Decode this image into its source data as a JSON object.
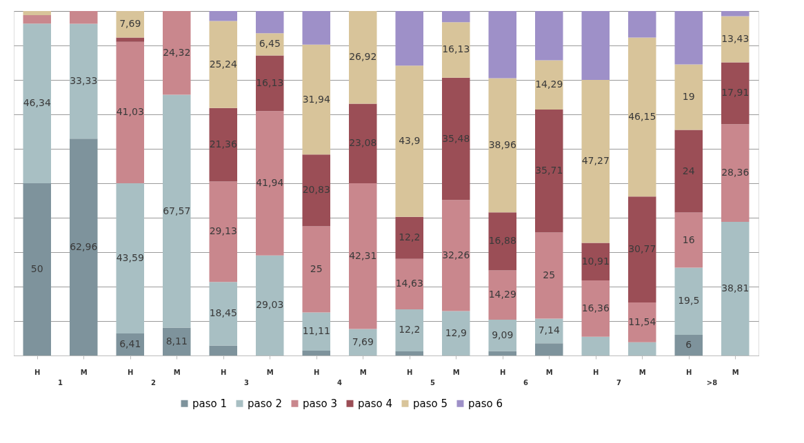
{
  "chart_data": {
    "type": "bar",
    "stacked": true,
    "categories": [
      "H",
      "M",
      "H",
      "M",
      "H",
      "M",
      "H",
      "M",
      "H",
      "M",
      "H",
      "M",
      "H",
      "M",
      "H",
      "M"
    ],
    "annotations": [
      "1",
      "2",
      "3",
      "4",
      "5",
      "6",
      "7",
      ">8"
    ],
    "series": [
      {
        "name": "paso 1",
        "color": "#7e939c",
        "values": [
          50,
          62.96,
          6.41,
          8.11,
          2.91,
          0,
          1.39,
          0,
          1.22,
          0,
          1.3,
          3.57,
          0,
          0,
          6,
          0
        ],
        "value_labels": [
          "50",
          "62,96",
          "6,41",
          "8,11",
          null,
          null,
          null,
          null,
          null,
          null,
          null,
          null,
          null,
          null,
          "6",
          null
        ]
      },
      {
        "name": "paso 2",
        "color": "#a8bfc3",
        "values": [
          46.34,
          33.33,
          43.59,
          67.57,
          18.45,
          29.03,
          11.11,
          7.69,
          12.2,
          12.9,
          9.09,
          7.14,
          5.45,
          3.85,
          19.5,
          38.81
        ],
        "value_labels": [
          "46,34",
          "33,33",
          "43,59",
          "67,57",
          "18,45",
          "29,03",
          "11,11",
          "7,69",
          "12,2",
          "12,9",
          "9,09",
          "7,14",
          null,
          null,
          "19,5",
          "38,81"
        ]
      },
      {
        "name": "paso 3",
        "color": "#c9878d",
        "values": [
          2.44,
          3.7,
          41.03,
          24.32,
          29.13,
          41.94,
          25,
          42.31,
          14.63,
          32.26,
          14.29,
          25,
          16.36,
          11.54,
          16,
          28.36
        ],
        "value_labels": [
          null,
          null,
          "41,03",
          "24,32",
          "29,13",
          "41,94",
          "25",
          "42,31",
          "14,63",
          "32,26",
          "14,29",
          "25",
          "16,36",
          "11,54",
          "16",
          "28,36"
        ]
      },
      {
        "name": "paso 4",
        "color": "#9b4e56",
        "values": [
          0,
          0,
          1.28,
          0,
          21.36,
          16.13,
          20.83,
          23.08,
          12.2,
          35.48,
          16.88,
          35.71,
          10.91,
          30.77,
          24,
          17.91
        ],
        "value_labels": [
          null,
          null,
          null,
          null,
          "21,36",
          "16,13",
          "20,83",
          "23,08",
          "12,2",
          "35,48",
          "16,88",
          "35,71",
          "10,91",
          "30,77",
          "24",
          "17,91"
        ]
      },
      {
        "name": "paso 5",
        "color": "#d8c49a",
        "values": [
          1.22,
          0,
          7.69,
          0,
          25.24,
          6.45,
          31.94,
          26.92,
          43.9,
          16.13,
          38.96,
          14.29,
          47.27,
          46.15,
          19,
          13.43
        ],
        "value_labels": [
          null,
          null,
          "7,69",
          null,
          "25,24",
          "6,45",
          "31,94",
          "26,92",
          "43,9",
          "16,13",
          "38,96",
          "14,29",
          "47,27",
          "46,15",
          "19",
          "13,43"
        ]
      },
      {
        "name": "paso 6",
        "color": "#9e90c8",
        "values": [
          0,
          0,
          0,
          0,
          2.91,
          6.45,
          9.72,
          0,
          15.85,
          3.23,
          19.48,
          14.29,
          20,
          7.69,
          15.5,
          1.49
        ],
        "value_labels": [
          null,
          null,
          null,
          null,
          null,
          null,
          null,
          null,
          null,
          null,
          null,
          null,
          null,
          null,
          null,
          null
        ]
      }
    ],
    "ylim": [
      0,
      100
    ],
    "yticks": [
      {
        "value": 0,
        "label": null
      },
      {
        "value": 10,
        "label": null
      },
      {
        "value": 20,
        "label": null
      },
      {
        "value": 30,
        "label": null
      },
      {
        "value": 40,
        "label": null
      },
      {
        "value": 50,
        "label": null
      },
      {
        "value": 60,
        "label": null
      },
      {
        "value": 70,
        "label": null
      },
      {
        "value": 80,
        "label": null
      },
      {
        "value": 90,
        "label": null
      },
      {
        "value": 100,
        "label": null
      }
    ],
    "tick_labels": "x",
    "grid": "y",
    "legend": "bottom"
  }
}
